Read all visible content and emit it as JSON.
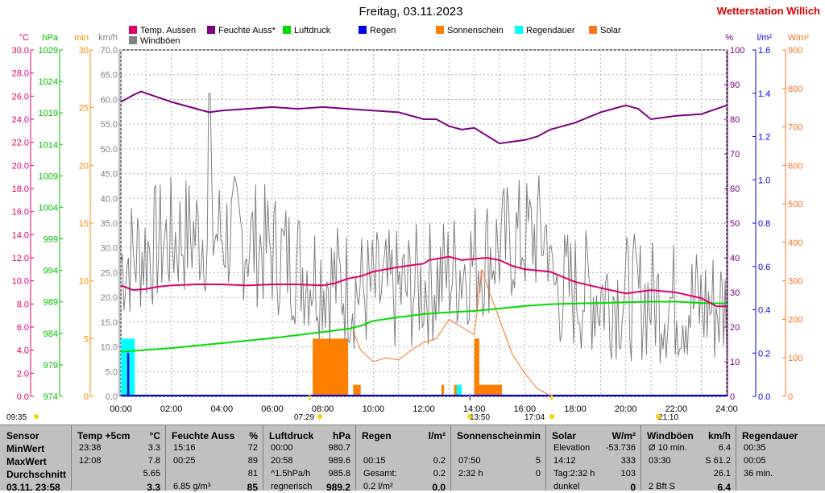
{
  "title": "Freitag, 03.11.2023",
  "station": "Wetterstation Willich",
  "colors": {
    "temp": "#e0006c",
    "humidity": "#7c0080",
    "pressure": "#00dc00",
    "rain": "#0000e0",
    "sunshine": "#ff8000",
    "rainduration": "#00ffff",
    "solar": "#ff7020",
    "gust": "#808080",
    "tempAxis": "#e0006c",
    "pressAxis": "#00c000",
    "minAxis": "#ff8c00",
    "kmhAxis": "#808080",
    "pctAxis": "#7c0080",
    "rainAxis": "#0000e0",
    "solarAxis": "#ff7020"
  },
  "legend": [
    {
      "label": "Temp. Aussen",
      "color": "#e0006c"
    },
    {
      "label": "Feuchte Auss*",
      "color": "#7c0080"
    },
    {
      "label": "Luftdruck",
      "color": "#00dc00"
    },
    {
      "label": "Regen",
      "color": "#0000e0"
    },
    {
      "label": "Sonnenschein",
      "color": "#ff8000"
    },
    {
      "label": "Regendauer",
      "color": "#00ffff"
    },
    {
      "label": "Solar",
      "color": "#ff7020"
    },
    {
      "label": "Windböen",
      "color": "#808080"
    }
  ],
  "axes": {
    "temp_unit": "°C",
    "press_unit": "hPa",
    "min_unit": "min",
    "kmh_unit": "km/h",
    "pct_unit": "%",
    "rain_unit": "l/m²",
    "solar_unit": "W/m²",
    "temp_ticks": [
      "30.0",
      "28.0",
      "26.0",
      "24.0",
      "22.0",
      "20.0",
      "18.0",
      "16.0",
      "14.0",
      "12.0",
      "10.0",
      "8.0",
      "6.0",
      "4.0",
      "2.0",
      "0.0"
    ],
    "press_ticks": [
      "1029",
      "1024",
      "1019",
      "1014",
      "1009",
      "1004",
      "999",
      "994",
      "989",
      "984",
      "979",
      "974"
    ],
    "min_ticks": [
      "30",
      "25",
      "20",
      "15",
      "10",
      "5",
      "0"
    ],
    "kmh_ticks": [
      "70.0",
      "65.0",
      "60.0",
      "55.0",
      "50.0",
      "45.0",
      "40.0",
      "35.0",
      "30.0",
      "25.0",
      "20.0",
      "15.0",
      "10.0",
      "5.0",
      "0.0"
    ],
    "pct_ticks": [
      "100",
      "90",
      "80",
      "70",
      "60",
      "50",
      "40",
      "30",
      "20",
      "10",
      "0"
    ],
    "rain_ticks": [
      "1.6",
      "1.4",
      "1.2",
      "1.0",
      "0.8",
      "0.6",
      "0.4",
      "0.2",
      "0.0"
    ],
    "solar_ticks": [
      "900",
      "800",
      "700",
      "600",
      "500",
      "400",
      "300",
      "200",
      "100",
      "0"
    ],
    "x_ticks": [
      "00:00",
      "02:00",
      "04:00",
      "06:00",
      "08:00",
      "10:00",
      "12:00",
      "14:00",
      "16:00",
      "18:00",
      "20:00",
      "22:00",
      "24:00"
    ]
  },
  "chart_data": {
    "type": "line",
    "xlabel": "",
    "x_range_hours": [
      0,
      24
    ],
    "grid": true,
    "legend_position": "top",
    "series": [
      {
        "name": "Temp. Aussen",
        "unit": "°C",
        "y_range": [
          0,
          30
        ],
        "points": [
          [
            0,
            9.6
          ],
          [
            0.5,
            9.2
          ],
          [
            1,
            9.3
          ],
          [
            1.5,
            9.5
          ],
          [
            2,
            9.6
          ],
          [
            3,
            9.7
          ],
          [
            4,
            9.7
          ],
          [
            5,
            9.6
          ],
          [
            6,
            9.7
          ],
          [
            7,
            9.7
          ],
          [
            8,
            9.6
          ],
          [
            8.5,
            9.8
          ],
          [
            9,
            10.2
          ],
          [
            9.5,
            10.4
          ],
          [
            10,
            10.8
          ],
          [
            11,
            11.2
          ],
          [
            12,
            11.5
          ],
          [
            12.2,
            11.8
          ],
          [
            13,
            12.1
          ],
          [
            13.5,
            11.8
          ],
          [
            14,
            11.9
          ],
          [
            14.5,
            12.0
          ],
          [
            15,
            11.8
          ],
          [
            15.5,
            11.3
          ],
          [
            16,
            11.0
          ],
          [
            17,
            10.8
          ],
          [
            18,
            9.9
          ],
          [
            19,
            9.4
          ],
          [
            20,
            8.9
          ],
          [
            21,
            9.2
          ],
          [
            22,
            9.0
          ],
          [
            23,
            8.5
          ],
          [
            23.6,
            7.8
          ],
          [
            24,
            7.8
          ]
        ]
      },
      {
        "name": "Feuchte Auss*",
        "unit": "%",
        "y_range": [
          0,
          100
        ],
        "points": [
          [
            0,
            85
          ],
          [
            0.5,
            87
          ],
          [
            0.8,
            88
          ],
          [
            1.2,
            87
          ],
          [
            2,
            85
          ],
          [
            3,
            83
          ],
          [
            3.5,
            82
          ],
          [
            4,
            82.5
          ],
          [
            5,
            83
          ],
          [
            6,
            83.5
          ],
          [
            7,
            83
          ],
          [
            8,
            83.5
          ],
          [
            9,
            83
          ],
          [
            10,
            82.5
          ],
          [
            11,
            82
          ],
          [
            12,
            80
          ],
          [
            12.5,
            80
          ],
          [
            13,
            78
          ],
          [
            13.5,
            77
          ],
          [
            14,
            77.5
          ],
          [
            15,
            73
          ],
          [
            15.5,
            73.5
          ],
          [
            16,
            74
          ],
          [
            16.5,
            75
          ],
          [
            17,
            77
          ],
          [
            18,
            79
          ],
          [
            19,
            82
          ],
          [
            20,
            84
          ],
          [
            20.5,
            83
          ],
          [
            21,
            80
          ],
          [
            22,
            81
          ],
          [
            23,
            81.5
          ],
          [
            23.6,
            83
          ],
          [
            24,
            84
          ]
        ]
      },
      {
        "name": "Luftdruck",
        "unit": "hPa",
        "y_range": [
          974,
          1030
        ],
        "points": [
          [
            0,
            981.2
          ],
          [
            1,
            981.5
          ],
          [
            2,
            981.8
          ],
          [
            3,
            982.2
          ],
          [
            4,
            982.6
          ],
          [
            5,
            983.0
          ],
          [
            6,
            983.4
          ],
          [
            7,
            983.9
          ],
          [
            8,
            984.4
          ],
          [
            9,
            984.9
          ],
          [
            9.5,
            985.4
          ],
          [
            10,
            986.2
          ],
          [
            11,
            986.8
          ],
          [
            12,
            987.3
          ],
          [
            13,
            987.6
          ],
          [
            14,
            987.8
          ],
          [
            15,
            988.2
          ],
          [
            16,
            988.6
          ],
          [
            17,
            988.9
          ],
          [
            18,
            989.0
          ],
          [
            19,
            989.1
          ],
          [
            20,
            989.2
          ],
          [
            21,
            989.3
          ],
          [
            22,
            989.3
          ],
          [
            23,
            989.1
          ],
          [
            24,
            989.0
          ]
        ]
      },
      {
        "name": "Windböen",
        "unit": "km/h",
        "y_range": [
          0,
          70
        ],
        "mean": 26.1,
        "max": 61.2
      },
      {
        "name": "Solar",
        "unit": "W/m²",
        "y_range": [
          0,
          900
        ],
        "max": 333,
        "points": [
          [
            9.2,
            170
          ],
          [
            9.5,
            120
          ],
          [
            10,
            90
          ],
          [
            10.5,
            100
          ],
          [
            11,
            95
          ],
          [
            11.5,
            120
          ],
          [
            12,
            140
          ],
          [
            12.5,
            150
          ],
          [
            13,
            200
          ],
          [
            13.5,
            180
          ],
          [
            14,
            160
          ],
          [
            14.3,
            330
          ],
          [
            14.6,
            270
          ],
          [
            15,
            200
          ],
          [
            15.5,
            110
          ],
          [
            16,
            60
          ],
          [
            16.5,
            20
          ],
          [
            17,
            2
          ]
        ]
      },
      {
        "name": "Sonnenschein",
        "unit": "min",
        "y_range": [
          0,
          30
        ],
        "bars": [
          [
            7.6,
            9.0,
            5
          ],
          [
            9.2,
            9.5,
            1
          ],
          [
            12.7,
            12.8,
            1
          ],
          [
            13.2,
            13.4,
            1
          ],
          [
            14.0,
            14.2,
            5
          ],
          [
            14.2,
            15.1,
            1
          ]
        ]
      },
      {
        "name": "Regendauer",
        "unit": "min",
        "y_range": [
          0,
          30
        ],
        "bars": [
          [
            0.0,
            0.55,
            5
          ],
          [
            13.3,
            13.5,
            1
          ]
        ]
      },
      {
        "name": "Regen",
        "unit": "l/m²",
        "y_range": [
          0,
          1.6
        ],
        "bars": [
          [
            0.25,
            0.33,
            0.2
          ]
        ]
      }
    ]
  },
  "sun": {
    "rise": "07:29",
    "set": "17:04",
    "moonset": "09:35",
    "noon": "13:50",
    "moonrise": "21:10"
  },
  "table": {
    "row_labels": [
      "Sensor",
      "MinWert",
      "MaxWert",
      "Durchschnitt",
      "03.11. 23:58"
    ],
    "temp": {
      "h1": "Temp +5cm",
      "h2": "°C",
      "r": [
        [
          "23:38",
          "3.3"
        ],
        [
          "12:08",
          "7.8"
        ],
        [
          "",
          "5.65"
        ],
        [
          "",
          "3.3"
        ]
      ]
    },
    "hum": {
      "h1": "Feuchte Auss",
      "h2": "%",
      "r": [
        [
          "15:16",
          "72"
        ],
        [
          "00:25",
          "89"
        ],
        [
          "",
          "81"
        ],
        [
          "6.85 g/m³",
          "85"
        ]
      ]
    },
    "press": {
      "h1": "Luftdruck",
      "h2": "hPa",
      "r": [
        [
          "00:00",
          "980.7"
        ],
        [
          "20:58",
          "989.6"
        ],
        [
          "^1.5hPa/h",
          "985.8"
        ],
        [
          "regnerisch",
          "989.2"
        ]
      ]
    },
    "rain": {
      "h1": "Regen",
      "h2": "l/m²",
      "r": [
        [
          "",
          ""
        ],
        [
          "00:15",
          "0.2"
        ],
        [
          "Gesamt:",
          "0.2"
        ],
        [
          "0.2 l/m²",
          "0.0"
        ]
      ]
    },
    "sunsh": {
      "h1": "Sonnenschein",
      "h2": "min",
      "r": [
        [
          "",
          ""
        ],
        [
          "07:50",
          "5"
        ],
        [
          "2:32 h",
          "0"
        ],
        [
          "",
          ""
        ]
      ]
    },
    "solar": {
      "h1": "Solar",
      "h2": "W/m²",
      "r": [
        [
          "Elevation",
          "-53.736"
        ],
        [
          "14:12",
          "333"
        ],
        [
          "Tag:2:32 h",
          "103"
        ],
        [
          "dunkel",
          "0"
        ]
      ]
    },
    "wind": {
      "h1": "Windböen",
      "h2": "km/h",
      "r": [
        [
          "Ø 10 min.",
          "6.4"
        ],
        [
          "03:30",
          "S 61.2"
        ],
        [
          "",
          "26.1"
        ],
        [
          "2 Bft S",
          "6.4"
        ]
      ]
    },
    "rd": {
      "h1": "Regendauer",
      "h2": "",
      "r": [
        [
          "00:35",
          ""
        ],
        [
          "00:05",
          ""
        ],
        [
          "36 min.",
          ""
        ],
        [
          "",
          ""
        ]
      ]
    }
  }
}
